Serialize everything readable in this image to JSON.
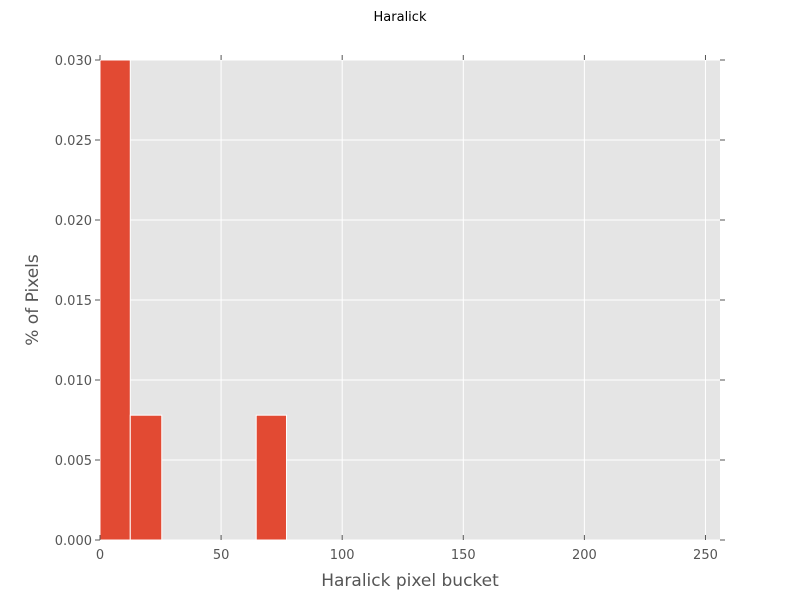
{
  "chart_data": {
    "type": "bar",
    "title": "Haralick",
    "xlabel": "Haralick pixel bucket",
    "ylabel": "% of Pixels",
    "xlim": [
      0,
      256
    ],
    "ylim": [
      0,
      0.03
    ],
    "bin_width": 12.5,
    "bars": [
      {
        "x0": 0,
        "x1": 12.5,
        "value": 0.03
      },
      {
        "x0": 12.5,
        "x1": 25.5,
        "value": 0.0078
      },
      {
        "x0": 64.5,
        "x1": 77,
        "value": 0.0078
      }
    ],
    "x_ticks": [
      "0",
      "50",
      "100",
      "150",
      "200",
      "250"
    ],
    "x_tick_values": [
      0,
      50,
      100,
      150,
      200,
      250
    ],
    "y_ticks": [
      "0.000",
      "0.005",
      "0.010",
      "0.015",
      "0.020",
      "0.025",
      "0.030"
    ],
    "y_tick_values": [
      0,
      0.005,
      0.01,
      0.015,
      0.02,
      0.025,
      0.03
    ],
    "grid": true,
    "colors": {
      "bar": "#E24A33",
      "plot_background": "#E5E5E5",
      "grid": "#FFFFFF"
    }
  }
}
